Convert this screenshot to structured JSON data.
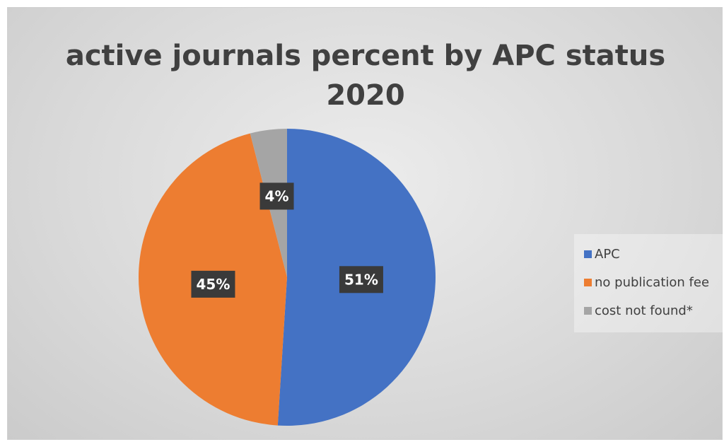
{
  "chart_data": {
    "type": "pie",
    "title": [
      "active journals percent by APC status",
      "2020"
    ],
    "slices": [
      {
        "label": "APC",
        "value": 51,
        "display": "51%",
        "color": "#4472C4"
      },
      {
        "label": "no publication fee",
        "value": 45,
        "display": "45%",
        "color": "#ED7D31"
      },
      {
        "label": "cost not found*",
        "value": 4,
        "display": "4%",
        "color": "#A5A5A5"
      }
    ],
    "legend_position": "right"
  }
}
